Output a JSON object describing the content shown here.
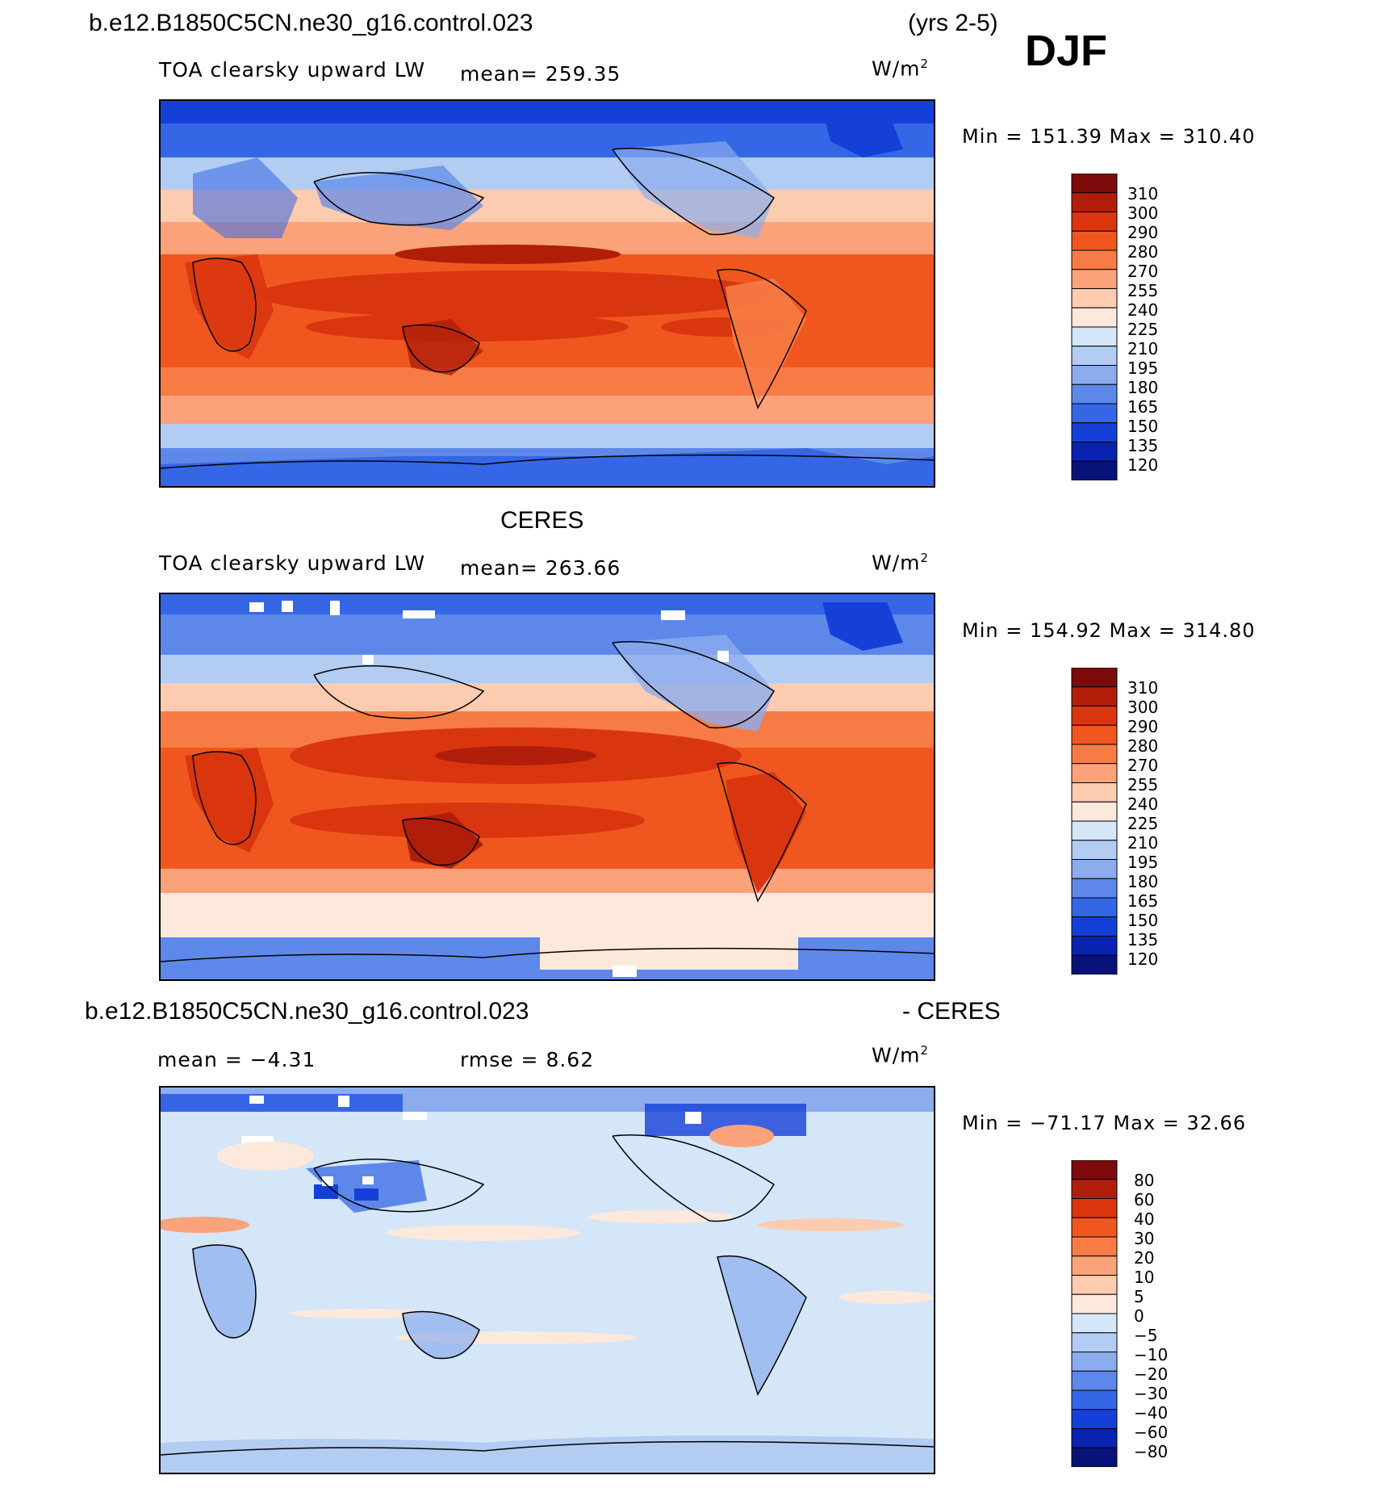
{
  "header": {
    "case_name": "b.e12.B1850C5CN.ne30_g16.control.023",
    "years": "(yrs 2-5)",
    "season": "DJF"
  },
  "panels": [
    {
      "id": "model",
      "title": "",
      "variable": "TOA clearsky upward LW",
      "mean_text": "mean= 259.35",
      "units": "W/m",
      "units_exp": "2",
      "minmax": "Min = 151.39 Max = 310.40",
      "colorbar_levels": [
        "310",
        "300",
        "290",
        "280",
        "270",
        "255",
        "240",
        "225",
        "210",
        "195",
        "180",
        "165",
        "150",
        "135",
        "120"
      ]
    },
    {
      "id": "obs",
      "title": "CERES",
      "variable": "TOA clearsky upward LW",
      "mean_text": "mean= 263.66",
      "units": "W/m",
      "units_exp": "2",
      "minmax": "Min = 154.92 Max = 314.80",
      "colorbar_levels": [
        "310",
        "300",
        "290",
        "280",
        "270",
        "255",
        "240",
        "225",
        "210",
        "195",
        "180",
        "165",
        "150",
        "135",
        "120"
      ]
    },
    {
      "id": "diff",
      "title_left": "b.e12.B1850C5CN.ne30_g16.control.023",
      "title_right": "- CERES",
      "mean_text": "mean =   −4.31",
      "rmse_text": "rmse =    8.62",
      "units": "W/m",
      "units_exp": "2",
      "minmax": "Min = −71.17 Max =  32.66",
      "colorbar_levels": [
        "80",
        "60",
        "40",
        "30",
        "20",
        "10",
        "5",
        "0",
        "−5",
        "−10",
        "−20",
        "−30",
        "−40",
        "−60",
        "−80"
      ]
    }
  ],
  "colors": {
    "abs_scale": [
      "#7d0a0a",
      "#b01e0a",
      "#d9360f",
      "#f0571e",
      "#f77b45",
      "#fba27a",
      "#fccbb0",
      "#fde9dc",
      "#d4e6f8",
      "#b3ccf2",
      "#8cacee",
      "#5d88ea",
      "#3466e6",
      "#1440d8",
      "#0a22b0",
      "#071378"
    ],
    "diff_scale": [
      "#7d0a0a",
      "#b01e0a",
      "#d9360f",
      "#f0571e",
      "#f77b45",
      "#fba27a",
      "#fccbb0",
      "#fde9dc",
      "#d4e6f8",
      "#b3ccf2",
      "#8cacee",
      "#5d88ea",
      "#3466e6",
      "#1440d8",
      "#0a22b0",
      "#071378"
    ]
  }
}
